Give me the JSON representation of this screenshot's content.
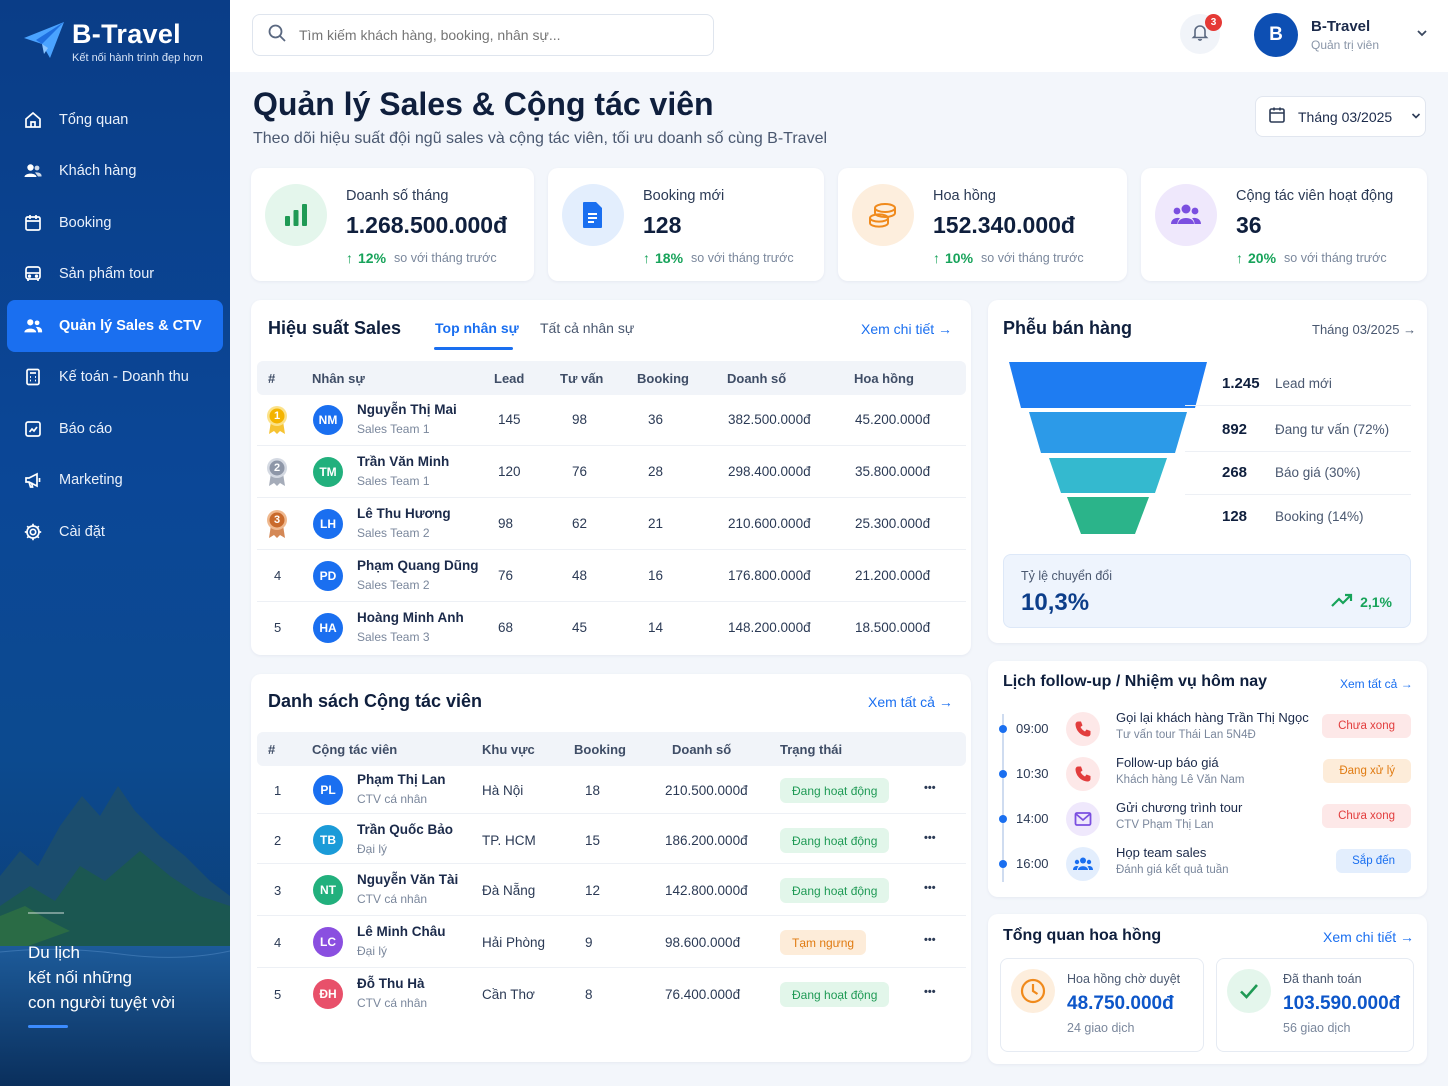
{
  "brand": {
    "name": "B-Travel",
    "slogan": "Kết nối hành trình đẹp hơn"
  },
  "sidebar": {
    "items": [
      {
        "label": "Tổng quan",
        "icon": "home-icon"
      },
      {
        "label": "Khách hàng",
        "icon": "users-icon"
      },
      {
        "label": "Booking",
        "icon": "calendar-icon"
      },
      {
        "label": "Sản phẩm tour",
        "icon": "bus-icon"
      },
      {
        "label": "Quản lý Sales & CTV",
        "icon": "team-icon",
        "active": true
      },
      {
        "label": "Kế toán - Doanh thu",
        "icon": "calculator-icon"
      },
      {
        "label": "Báo cáo",
        "icon": "report-icon"
      },
      {
        "label": "Marketing",
        "icon": "megaphone-icon"
      },
      {
        "label": "Cài đặt",
        "icon": "gear-icon"
      }
    ],
    "tagline": [
      "Du lịch",
      "kết nối những",
      "con người tuyệt vời"
    ]
  },
  "topbar": {
    "search_placeholder": "Tìm kiếm khách hàng, booking, nhân sự...",
    "notification_count": "3",
    "user": {
      "initial": "B",
      "name": "B-Travel",
      "role": "Quản trị viên"
    }
  },
  "page": {
    "title": "Quản lý Sales & Cộng tác viên",
    "subtitle": "Theo dõi hiệu suất đội ngũ sales và cộng tác viên, tối ưu doanh số cùng B-Travel",
    "month": "Tháng 03/2025"
  },
  "kpis": [
    {
      "label": "Doanh số tháng",
      "value": "1.268.500.000đ",
      "change": "12%",
      "compare": "so với tháng trước",
      "color": "#1f9a55",
      "bg": "#e4f6ec"
    },
    {
      "label": "Booking mới",
      "value": "128",
      "change": "18%",
      "compare": "so với tháng trước",
      "color": "#1a6ff0",
      "bg": "#e3eefd"
    },
    {
      "label": "Hoa hồng",
      "value": "152.340.000đ",
      "change": "10%",
      "compare": "so với tháng trước",
      "color": "#f08a1c",
      "bg": "#fdeedd"
    },
    {
      "label": "Cộng tác viên hoạt động",
      "value": "36",
      "change": "20%",
      "compare": "so với tháng trước",
      "color": "#7b4fe0",
      "bg": "#efe8fc"
    }
  ],
  "sales": {
    "title": "Hiệu suất Sales",
    "tabs": [
      "Top nhân sự",
      "Tất cả nhân sự"
    ],
    "link": "Xem chi tiết",
    "headers": [
      "#",
      "Nhân sự",
      "Lead",
      "Tư vấn",
      "Booking",
      "Doanh số",
      "Hoa hồng"
    ],
    "rows": [
      {
        "rank": "1",
        "initials": "NM",
        "name": "Nguyễn Thị Mai",
        "team": "Sales Team 1",
        "lead": "145",
        "consult": "98",
        "booking": "36",
        "revenue": "382.500.000đ",
        "commission": "45.200.000đ",
        "color": "#1a6ff0"
      },
      {
        "rank": "2",
        "initials": "TM",
        "name": "Trần Văn Minh",
        "team": "Sales Team 1",
        "lead": "120",
        "consult": "76",
        "booking": "28",
        "revenue": "298.400.000đ",
        "commission": "35.800.000đ",
        "color": "#22b07d"
      },
      {
        "rank": "3",
        "initials": "LH",
        "name": "Lê Thu Hương",
        "team": "Sales Team 2",
        "lead": "98",
        "consult": "62",
        "booking": "21",
        "revenue": "210.600.000đ",
        "commission": "25.300.000đ",
        "color": "#1a6ff0"
      },
      {
        "rank": "4",
        "initials": "PD",
        "name": "Phạm Quang Dũng",
        "team": "Sales Team 2",
        "lead": "76",
        "consult": "48",
        "booking": "16",
        "revenue": "176.800.000đ",
        "commission": "21.200.000đ",
        "color": "#1a6ff0"
      },
      {
        "rank": "5",
        "initials": "HA",
        "name": "Hoàng Minh Anh",
        "team": "Sales Team 3",
        "lead": "68",
        "consult": "45",
        "booking": "14",
        "revenue": "148.200.000đ",
        "commission": "18.500.000đ",
        "color": "#1a6ff0"
      }
    ]
  },
  "ctv": {
    "title": "Danh sách Cộng tác viên",
    "link": "Xem tất cả",
    "headers": [
      "#",
      "Cộng tác viên",
      "Khu vực",
      "Booking",
      "Doanh số",
      "Trạng thái"
    ],
    "rows": [
      {
        "rank": "1",
        "initials": "PL",
        "name": "Phạm Thị Lan",
        "type": "CTV cá nhân",
        "area": "Hà Nội",
        "booking": "18",
        "revenue": "210.500.000đ",
        "status": "Đang hoạt động",
        "st": "green",
        "color": "#1a6ff0"
      },
      {
        "rank": "2",
        "initials": "TB",
        "name": "Trần Quốc Bảo",
        "type": "Đại lý",
        "area": "TP. HCM",
        "booking": "15",
        "revenue": "186.200.000đ",
        "status": "Đang hoạt động",
        "st": "green",
        "color": "#1b9bd8"
      },
      {
        "rank": "3",
        "initials": "NT",
        "name": "Nguyễn Văn Tài",
        "type": "CTV cá nhân",
        "area": "Đà Nẵng",
        "booking": "12",
        "revenue": "142.800.000đ",
        "status": "Đang hoạt động",
        "st": "green",
        "color": "#22b07d"
      },
      {
        "rank": "4",
        "initials": "LC",
        "name": "Lê Minh Châu",
        "type": "Đại lý",
        "area": "Hải Phòng",
        "booking": "9",
        "revenue": "98.600.000đ",
        "status": "Tạm ngưng",
        "st": "orange",
        "color": "#8a4fe0"
      },
      {
        "rank": "5",
        "initials": "ĐH",
        "name": "Đỗ Thu Hà",
        "type": "CTV cá nhân",
        "area": "Cần Thơ",
        "booking": "8",
        "revenue": "76.400.000đ",
        "status": "Đang hoạt động",
        "st": "green",
        "color": "#e8506a"
      }
    ]
  },
  "funnel": {
    "title": "Phễu bán hàng",
    "month": "Tháng 03/2025",
    "stages": [
      {
        "value": "1.245",
        "label": "Lead mới",
        "color": "#1e7cf2"
      },
      {
        "value": "892",
        "label": "Đang tư vấn (72%)",
        "color": "#2c9ae8"
      },
      {
        "value": "268",
        "label": "Báo giá (30%)",
        "color": "#34b9cf"
      },
      {
        "value": "128",
        "label": "Booking (14%)",
        "color": "#2bb48a"
      }
    ],
    "conversion_label": "Tỷ lệ chuyển đổi",
    "conversion_value": "10,3%",
    "conversion_change": "2,1%"
  },
  "followup": {
    "title": "Lịch follow-up / Nhiệm vụ hôm nay",
    "link": "Xem tất cả",
    "tasks": [
      {
        "time": "09:00",
        "title": "Gọi lại khách hàng Trần Thị Ngọc",
        "sub": "Tư vấn tour Thái Lan 5N4Đ",
        "status": "Chưa xong",
        "st": "red",
        "icon": "phone-icon",
        "icolor": "#e23d3d",
        "ibg": "#fde8e8"
      },
      {
        "time": "10:30",
        "title": "Follow-up báo giá",
        "sub": "Khách hàng Lê Văn Nam",
        "status": "Đang xử lý",
        "st": "org",
        "icon": "phone-icon",
        "icolor": "#e23d3d",
        "ibg": "#fde8e8"
      },
      {
        "time": "14:00",
        "title": "Gửi chương trình tour",
        "sub": "CTV Phạm Thị Lan",
        "status": "Chưa xong",
        "st": "red",
        "icon": "mail-icon",
        "icolor": "#7b4fe0",
        "ibg": "#efe8fc"
      },
      {
        "time": "16:00",
        "title": "Họp team sales",
        "sub": "Đánh giá kết quả tuần",
        "status": "Sắp đến",
        "st": "blu",
        "icon": "group-icon",
        "icolor": "#1a6ff0",
        "ibg": "#e3eefd"
      }
    ]
  },
  "commission": {
    "title": "Tổng quan hoa hồng",
    "link": "Xem chi tiết",
    "pending": {
      "label": "Hoa hồng chờ duyệt",
      "value": "48.750.000đ",
      "count": "24 giao dịch",
      "color": "#1a6ff0"
    },
    "paid": {
      "label": "Đã thanh toán",
      "value": "103.590.000đ",
      "count": "56 giao dịch",
      "color": "#1a6ff0"
    }
  }
}
